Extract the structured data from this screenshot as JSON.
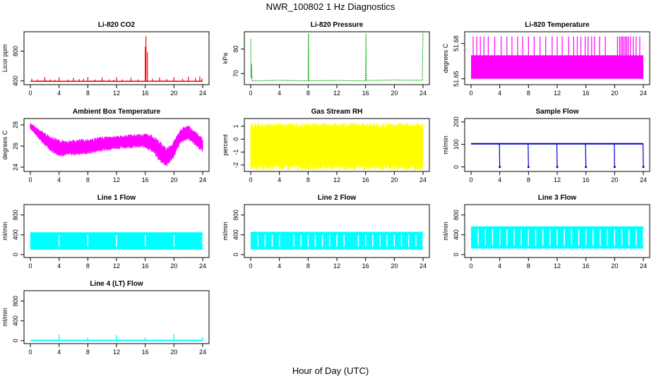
{
  "figure": {
    "title": "NWR_100802  1 Hz Diagnostics",
    "xlabel": "Hour of Day (UTC)"
  },
  "chart_data": [
    {
      "type": "line",
      "title": "Li-820 CO2",
      "ylabel": "Licor ppm",
      "color": "#ff0000",
      "xticks": [
        "0",
        "4",
        "8",
        "12",
        "16",
        "20",
        "24"
      ],
      "xlim": [
        0,
        24
      ],
      "yticks": [
        "400",
        "800"
      ],
      "ytick_values": [
        400,
        800
      ],
      "ylim": [
        350,
        1060
      ],
      "baseline": [
        [
          0,
          395
        ],
        [
          2,
          397
        ],
        [
          4,
          394
        ],
        [
          6,
          396
        ],
        [
          8,
          395
        ],
        [
          10,
          397
        ],
        [
          12,
          394
        ],
        [
          14,
          396
        ],
        [
          16,
          395
        ],
        [
          18,
          397
        ],
        [
          20,
          396
        ],
        [
          22,
          395
        ],
        [
          24,
          397
        ]
      ],
      "spikes": [
        [
          0.2,
          430
        ],
        [
          1.0,
          420
        ],
        [
          2.0,
          450
        ],
        [
          2.8,
          420
        ],
        [
          3.4,
          415
        ],
        [
          4.0,
          450
        ],
        [
          5.2,
          420
        ],
        [
          6.0,
          440
        ],
        [
          6.8,
          425
        ],
        [
          7.4,
          430
        ],
        [
          8.0,
          450
        ],
        [
          9.0,
          420
        ],
        [
          10.0,
          445
        ],
        [
          11.0,
          420
        ],
        [
          11.6,
          415
        ],
        [
          12.0,
          450
        ],
        [
          12.8,
          420
        ],
        [
          14.0,
          440
        ],
        [
          15.0,
          420
        ],
        [
          16.0,
          860
        ],
        [
          16.1,
          1000
        ],
        [
          16.3,
          790
        ],
        [
          17.0,
          430
        ],
        [
          18.0,
          445
        ],
        [
          19.0,
          425
        ],
        [
          20.0,
          450
        ],
        [
          21.2,
          430
        ],
        [
          22.0,
          455
        ],
        [
          23.0,
          440
        ],
        [
          23.6,
          460
        ],
        [
          23.9,
          430
        ]
      ]
    },
    {
      "type": "line",
      "title": "Li-820 Pressure",
      "ylabel": "kPa",
      "color": "#00aa00",
      "xticks": [
        "0",
        "4",
        "8",
        "12",
        "16",
        "20",
        "24"
      ],
      "xlim": [
        0,
        24
      ],
      "yticks": [
        "70",
        "80"
      ],
      "ytick_values": [
        70,
        80
      ],
      "ylim": [
        65.5,
        87
      ],
      "points": [
        [
          0,
          84
        ],
        [
          0.05,
          68
        ],
        [
          0.1,
          74
        ],
        [
          0.2,
          67
        ],
        [
          0.5,
          67.0
        ],
        [
          4,
          67.3
        ],
        [
          8,
          67.0
        ],
        [
          8.05,
          86.3
        ],
        [
          8.1,
          67.1
        ],
        [
          12,
          67.2
        ],
        [
          16,
          67.0
        ],
        [
          16.05,
          86.4
        ],
        [
          16.1,
          67.2
        ],
        [
          20,
          67.4
        ],
        [
          23.9,
          67.3
        ],
        [
          24,
          86.5
        ]
      ]
    },
    {
      "type": "line",
      "title": "Li-820 Temperature",
      "ylabel": "degrees C",
      "color": "#ff00ff",
      "xticks": [
        "0",
        "4",
        "8",
        "12",
        "16",
        "20",
        "24"
      ],
      "xlim": [
        0,
        24
      ],
      "yticks": [
        "51.65",
        "51.68"
      ],
      "ytick_values": [
        51.65,
        51.68
      ],
      "ylim": [
        51.645,
        51.69
      ],
      "band": [
        51.65,
        51.67
      ],
      "spikes": [
        0.3,
        0.8,
        1.3,
        1.8,
        2.4,
        3.3,
        4.2,
        5.0,
        5.7,
        6.5,
        7.2,
        8.0,
        8.8,
        9.6,
        10.4,
        11.3,
        12.0,
        12.7,
        13.6,
        14.3,
        14.8,
        15.3,
        15.9,
        16.3,
        16.8,
        17.2,
        17.9,
        18.7,
        20.4,
        20.7,
        20.9,
        21.1,
        21.3,
        21.5,
        21.7,
        21.9,
        22.2,
        22.6,
        23.0,
        23.5
      ]
    },
    {
      "type": "line",
      "title": "Ambient Box Temperature",
      "ylabel": "degrees C",
      "color": "#ff00ff",
      "xticks": [
        "0",
        "4",
        "8",
        "12",
        "16",
        "20",
        "24"
      ],
      "xlim": [
        0,
        24
      ],
      "yticks": [
        "24",
        "26",
        "28"
      ],
      "ytick_values": [
        24,
        26,
        28
      ],
      "ylim": [
        23.6,
        28.6
      ],
      "upper": [
        [
          0,
          28.2
        ],
        [
          1,
          27.7
        ],
        [
          2,
          27.3
        ],
        [
          3,
          26.9
        ],
        [
          4,
          26.6
        ],
        [
          6,
          26.6
        ],
        [
          8,
          26.7
        ],
        [
          10,
          26.9
        ],
        [
          12,
          27.0
        ],
        [
          14,
          27.1
        ],
        [
          16,
          27.2
        ],
        [
          17,
          27.1
        ],
        [
          18,
          26.5
        ],
        [
          19,
          25.8
        ],
        [
          20,
          26.6
        ],
        [
          21,
          27.7
        ],
        [
          22,
          28.0
        ],
        [
          23,
          27.4
        ],
        [
          24,
          26.8
        ]
      ],
      "lower": [
        [
          0,
          27.6
        ],
        [
          1,
          26.8
        ],
        [
          2,
          26.0
        ],
        [
          3,
          25.4
        ],
        [
          4,
          25.0
        ],
        [
          6,
          25.1
        ],
        [
          8,
          25.2
        ],
        [
          10,
          25.5
        ],
        [
          12,
          25.7
        ],
        [
          14,
          25.8
        ],
        [
          16,
          25.8
        ],
        [
          17,
          25.4
        ],
        [
          18,
          24.5
        ],
        [
          19,
          24.0
        ],
        [
          20,
          24.9
        ],
        [
          21,
          26.3
        ],
        [
          22,
          26.6
        ],
        [
          23,
          26.0
        ],
        [
          24,
          25.4
        ]
      ]
    },
    {
      "type": "line",
      "title": "Gas Stream RH",
      "ylabel": "percent",
      "color": "#ffff00",
      "xticks": [
        "0",
        "4",
        "8",
        "12",
        "16",
        "20",
        "24"
      ],
      "xlim": [
        0,
        24
      ],
      "yticks": [
        "-2",
        "-1",
        "0",
        "1"
      ],
      "ytick_values": [
        -2,
        -1,
        0,
        1
      ],
      "ylim": [
        -2.5,
        1.6
      ],
      "band": [
        -2.1,
        1.05
      ]
    },
    {
      "type": "line",
      "title": "Sample Flow",
      "ylabel": "ml/min",
      "color": "#0000cc",
      "xticks": [
        "0",
        "4",
        "8",
        "12",
        "16",
        "20",
        "24"
      ],
      "xlim": [
        0,
        24
      ],
      "yticks": [
        "0",
        "100",
        "200"
      ],
      "ytick_values": [
        0,
        100,
        200
      ],
      "ylim": [
        -20,
        215
      ],
      "level": 103,
      "drops": [
        4,
        8,
        12,
        16,
        20,
        24
      ]
    },
    {
      "type": "line",
      "title": "Line 1 Flow",
      "ylabel": "ml/min",
      "color": "#00ffff",
      "xticks": [
        "0",
        "4",
        "8",
        "12",
        "16",
        "20",
        "24"
      ],
      "xlim": [
        0,
        24
      ],
      "yticks": [
        "0",
        "400",
        "800"
      ],
      "ytick_values": [
        0,
        400,
        800
      ],
      "ylim": [
        -60,
        1010
      ],
      "band": [
        100,
        450
      ],
      "gaps": [
        4,
        8,
        12,
        16,
        20,
        24
      ]
    },
    {
      "type": "line",
      "title": "Line 2 Flow",
      "ylabel": "ml/min",
      "color": "#00ffff",
      "xticks": [
        "0",
        "4",
        "8",
        "12",
        "16",
        "20",
        "24"
      ],
      "xlim": [
        0,
        24
      ],
      "yticks": [
        "0",
        "400",
        "800"
      ],
      "ytick_values": [
        0,
        400,
        800
      ],
      "ylim": [
        -60,
        1010
      ],
      "band": [
        100,
        460
      ],
      "gaps": [
        1,
        2,
        3,
        4,
        6,
        7,
        8,
        9,
        10,
        11,
        12,
        13,
        15,
        16,
        17,
        18,
        19,
        20,
        21,
        22,
        23,
        24
      ]
    },
    {
      "type": "line",
      "title": "Line 3 Flow",
      "ylabel": "ml/min",
      "color": "#00ffff",
      "xticks": [
        "0",
        "4",
        "8",
        "12",
        "16",
        "20",
        "24"
      ],
      "xlim": [
        0,
        24
      ],
      "yticks": [
        "0",
        "400",
        "800"
      ],
      "ytick_values": [
        0,
        400,
        800
      ],
      "ylim": [
        -60,
        1010
      ],
      "band": [
        120,
        570
      ],
      "gaps": [
        1,
        2,
        3,
        4,
        5,
        6,
        7,
        8,
        9,
        10,
        11,
        12,
        13,
        14,
        15,
        16,
        17,
        18,
        19,
        20,
        21,
        22,
        23,
        24
      ]
    },
    {
      "type": "line",
      "title": "Line 4 (LT) Flow",
      "ylabel": "ml/min",
      "color": "#00ffff",
      "xticks": [
        "0",
        "4",
        "8",
        "12",
        "16",
        "20",
        "24"
      ],
      "xlim": [
        0,
        24
      ],
      "yticks": [
        "0",
        "400",
        "800"
      ],
      "ytick_values": [
        0,
        400,
        800
      ],
      "ylim": [
        -60,
        1010
      ],
      "level": 5,
      "spikes": [
        [
          4,
          120
        ],
        [
          8,
          60
        ],
        [
          12,
          110
        ],
        [
          16,
          60
        ],
        [
          20,
          130
        ],
        [
          24,
          70
        ]
      ]
    }
  ]
}
